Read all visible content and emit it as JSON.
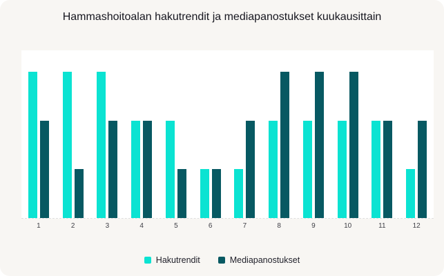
{
  "card": {
    "background_color": "#F8F6F3",
    "plot_background_color": "#FFFFFF"
  },
  "chart_data": {
    "type": "bar",
    "title": "Hammashoitoalan hakutrendit ja mediapanostukset kuukausittain",
    "categories": [
      "1",
      "2",
      "3",
      "4",
      "5",
      "6",
      "7",
      "8",
      "9",
      "10",
      "11",
      "12"
    ],
    "series": [
      {
        "name": "Hakutrendit",
        "color": "#0BE3D2",
        "values": [
          3,
          3,
          3,
          2,
          2,
          1,
          1,
          2,
          2,
          2,
          2,
          1
        ]
      },
      {
        "name": "Mediapanostukset",
        "color": "#075962",
        "values": [
          2,
          1,
          2,
          2,
          1,
          1,
          2,
          3,
          3,
          3,
          2,
          2
        ]
      }
    ],
    "xlabel": "",
    "ylabel": "",
    "ylim": [
      0,
      3.44
    ],
    "grid": false,
    "axis_line_style": "dashed",
    "legend_position": "bottom"
  }
}
